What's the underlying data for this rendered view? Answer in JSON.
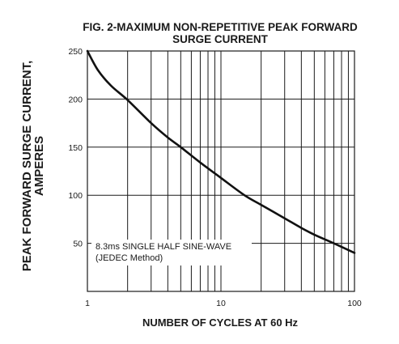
{
  "chart_data": {
    "type": "line",
    "title_lines": [
      "FIG. 2-MAXIMUM NON-REPETITIVE PEAK FORWARD",
      "SURGE CURRENT"
    ],
    "xlabel": "NUMBER OF CYCLES AT 60 Hz",
    "ylabel_lines": [
      "PEAK  FORWARD SURGE CURRENT,",
      "AMPERES"
    ],
    "x_scale": "log",
    "xlim": [
      1,
      100
    ],
    "ylim": [
      0,
      250
    ],
    "x_ticks": [
      1,
      10,
      100
    ],
    "x_tick_labels": [
      "1",
      "10",
      "100"
    ],
    "y_ticks": [
      50,
      100,
      150,
      200,
      250
    ],
    "y_tick_labels": [
      "50",
      "100",
      "150",
      "200",
      "250"
    ],
    "grid": true,
    "annotation_lines": [
      "8.3ms SINGLE HALF SINE-WAVE",
      "(JEDEC Method)"
    ],
    "series": [
      {
        "x": [
          1,
          1.2,
          1.5,
          2,
          3,
          4,
          5,
          7,
          10,
          15,
          20,
          30,
          40,
          50,
          70,
          100
        ],
        "y": [
          250,
          230,
          214,
          199,
          175,
          160,
          150,
          134,
          118,
          100,
          90,
          76,
          66,
          59,
          50,
          40
        ]
      }
    ]
  }
}
